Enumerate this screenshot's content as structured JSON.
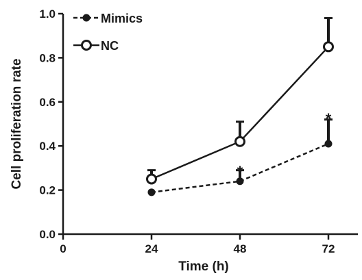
{
  "chart_data": {
    "type": "line",
    "xlabel": "Time (h)",
    "ylabel": "Cell proliferation rate",
    "xlim": [
      0,
      80
    ],
    "ylim": [
      0,
      1.0
    ],
    "xticks": [
      0,
      24,
      48,
      72
    ],
    "yticks": [
      0.0,
      0.2,
      0.4,
      0.6,
      0.8,
      1.0
    ],
    "ytick_labels": [
      "0.0",
      "0.2",
      "0.4",
      "0.6",
      "0.8",
      "1.0"
    ],
    "legend_position": "top-left",
    "series": [
      {
        "name": "Mimics",
        "x": [
          24,
          48,
          72
        ],
        "y": [
          0.19,
          0.24,
          0.41
        ],
        "error": [
          0.0,
          0.05,
          0.11
        ],
        "style": "dashed",
        "marker": "filled-circle",
        "color": "#1a1a1a"
      },
      {
        "name": "NC",
        "x": [
          24,
          48,
          72
        ],
        "y": [
          0.25,
          0.42,
          0.85
        ],
        "error": [
          0.04,
          0.09,
          0.13
        ],
        "style": "solid",
        "marker": "open-circle",
        "color": "#1a1a1a"
      }
    ],
    "annotations": [
      {
        "text": "*",
        "x": 48,
        "y": 0.31
      },
      {
        "text": "*",
        "x": 72,
        "y": 0.55
      }
    ]
  }
}
